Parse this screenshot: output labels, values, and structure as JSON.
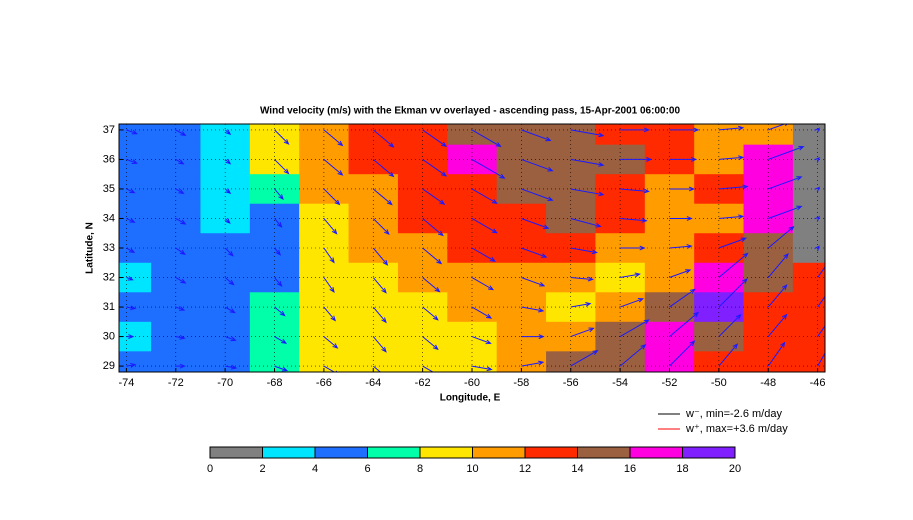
{
  "chart_data": {
    "type": "heatmap",
    "title": "Wind velocity (m/s) with the Ekman vv overlayed -  ascending pass, 15-Apr-2001 06:00:00",
    "xlabel": "Longitude, E",
    "ylabel": "Latitude, N",
    "x": [
      -74,
      -72,
      -70,
      -68,
      -66,
      -64,
      -62,
      -60,
      -58,
      -56,
      -54,
      -52,
      -50,
      -48,
      -46
    ],
    "y": [
      37,
      36,
      35,
      34,
      33,
      32,
      31,
      30,
      29
    ],
    "speed": [
      [
        5,
        5,
        3,
        9,
        11,
        12,
        13,
        15,
        14,
        15,
        13,
        13,
        11,
        10,
        1
      ],
      [
        5,
        4,
        3,
        9,
        11,
        12,
        13,
        17,
        15,
        15,
        14,
        12,
        11,
        17,
        1
      ],
      [
        4,
        4,
        3,
        6,
        10,
        11,
        12,
        13,
        15,
        15,
        13,
        11,
        13,
        16,
        1
      ],
      [
        4,
        5,
        3,
        5,
        9,
        10,
        12,
        13,
        13,
        14,
        12,
        10,
        11,
        16,
        1
      ],
      [
        4,
        5,
        5,
        4,
        8,
        10,
        11,
        12,
        12,
        12,
        11,
        10,
        13,
        15,
        1
      ],
      [
        3,
        5,
        5,
        5,
        8,
        9,
        10,
        11,
        11,
        10,
        9,
        10,
        17,
        14,
        12
      ],
      [
        4,
        4,
        5,
        6,
        8,
        9,
        9,
        10,
        10,
        9,
        11,
        14,
        18,
        13,
        12
      ],
      [
        3,
        4,
        5,
        6,
        8,
        9,
        9,
        9,
        10,
        11,
        15,
        17,
        14,
        13,
        12
      ],
      [
        4,
        4,
        5,
        6,
        8,
        9,
        9,
        9,
        10,
        14,
        15,
        16,
        13,
        13,
        12
      ]
    ],
    "direction": [
      [
        -20,
        -30,
        -40,
        -45,
        -40,
        -40,
        -35,
        -30,
        -20,
        -10,
        0,
        0,
        5,
        20,
        45
      ],
      [
        -20,
        -30,
        -40,
        -45,
        -40,
        -40,
        -35,
        -30,
        -20,
        -10,
        0,
        0,
        5,
        20,
        45
      ],
      [
        -25,
        -30,
        -40,
        -50,
        -45,
        -40,
        -35,
        -30,
        -20,
        -10,
        -5,
        0,
        5,
        20,
        45
      ],
      [
        -25,
        -30,
        -45,
        -50,
        -50,
        -45,
        -40,
        -30,
        -20,
        -15,
        -5,
        0,
        5,
        20,
        45
      ],
      [
        -30,
        -35,
        -45,
        -50,
        -55,
        -50,
        -40,
        -30,
        -20,
        -10,
        0,
        5,
        20,
        40,
        50
      ],
      [
        -20,
        -30,
        -40,
        -50,
        -55,
        -50,
        -40,
        -30,
        -20,
        -5,
        10,
        20,
        40,
        50,
        55
      ],
      [
        -10,
        -20,
        -30,
        -40,
        -50,
        -50,
        -40,
        -30,
        -10,
        10,
        20,
        35,
        45,
        50,
        55
      ],
      [
        0,
        -10,
        -20,
        -30,
        -40,
        -50,
        -40,
        -20,
        0,
        20,
        30,
        40,
        45,
        50,
        55
      ],
      [
        10,
        0,
        -10,
        -20,
        -30,
        -40,
        -30,
        -10,
        10,
        30,
        40,
        45,
        50,
        55,
        60
      ]
    ],
    "arrow_color": "#1a1aff",
    "xlim": [
      -74.3,
      -45.7
    ],
    "ylim": [
      28.8,
      37.2
    ],
    "xticks": [
      -74,
      -72,
      -70,
      -68,
      -66,
      -64,
      -62,
      -60,
      -58,
      -56,
      -54,
      -52,
      -50,
      -48,
      -46
    ],
    "yticks": [
      29,
      30,
      31,
      32,
      33,
      34,
      35,
      36,
      37
    ],
    "grid": true,
    "legend": [
      {
        "label": "w⁻, min=-2.6 m/day",
        "color": "#000000"
      },
      {
        "label": "w⁺, max=+3.6 m/day",
        "color": "#ff0000"
      }
    ],
    "colorbar": {
      "lim": [
        0,
        20
      ],
      "ticks": [
        0,
        2,
        4,
        6,
        8,
        10,
        12,
        14,
        16,
        18,
        20
      ],
      "colormap": [
        "#808080",
        "#00e5ff",
        "#1e6eff",
        "#00ffa8",
        "#ffe600",
        "#ff9c00",
        "#ff2a00",
        "#9a6040",
        "#ff00e0",
        "#8020ff"
      ]
    }
  }
}
